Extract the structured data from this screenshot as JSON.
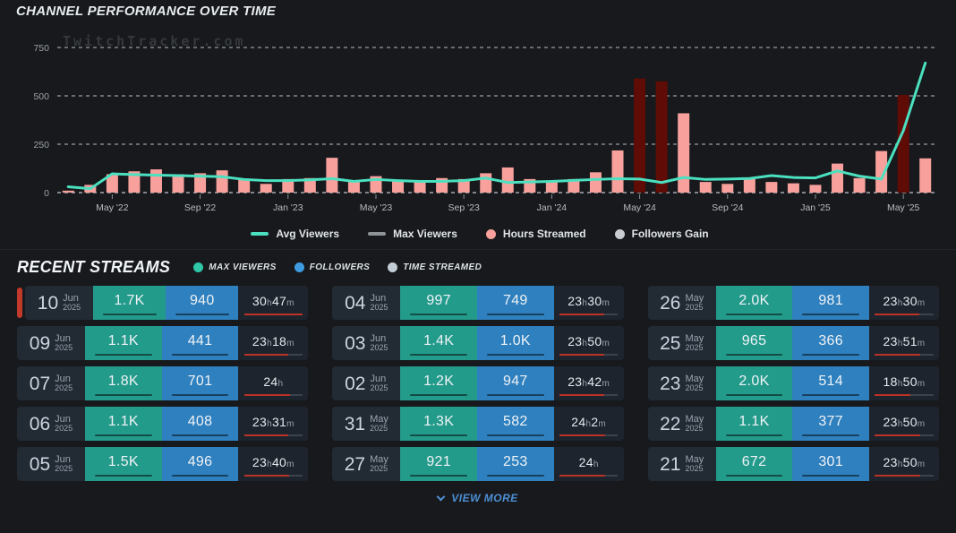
{
  "colors": {
    "background": "#17191c",
    "avg_viewers_line": "#4be0bf",
    "max_viewers_gray": "#8e9398",
    "hours_bar": "#f7a09c",
    "hours_bar_highlight": "#5f0c07",
    "followers_gain_gray": "#c9cdd1",
    "grid_line": "#83878c",
    "axis_label": "#9ba2a9",
    "tick_label": "#b6bcc3",
    "card_background": "#222a34",
    "max_viewers_cell": "#239b8b",
    "followers_cell": "#2f80bf",
    "time_cell": "#1d242d",
    "time_underline_red": "#bb3226",
    "live_indicator": "#c0392b",
    "view_more_blue": "#4e8fd5"
  },
  "chart": {
    "title": "CHANNEL PERFORMANCE OVER TIME",
    "watermark": "TwitchTracker.com",
    "legend": [
      {
        "label": "Avg Viewers",
        "marker": "line",
        "color": "#4be0bf"
      },
      {
        "label": "Max Viewers",
        "marker": "line",
        "color": "#8e9398"
      },
      {
        "label": "Hours Streamed",
        "marker": "circle",
        "color": "#f7a09c"
      },
      {
        "label": "Followers Gain",
        "marker": "circle",
        "color": "#c9cdd1"
      }
    ]
  },
  "chart_data": {
    "type": "bar+line",
    "title": "CHANNEL PERFORMANCE OVER TIME",
    "ylim": [
      0,
      750
    ],
    "y_ticks": [
      0,
      250,
      500,
      750
    ],
    "grid": "dashed-horizontal",
    "legend_position": "bottom",
    "x": [
      "Mar '22",
      "Apr '22",
      "May '22",
      "Jun '22",
      "Jul '22",
      "Aug '22",
      "Sep '22",
      "Oct '22",
      "Nov '22",
      "Dec '22",
      "Jan '23",
      "Feb '23",
      "Mar '23",
      "Apr '23",
      "May '23",
      "Jun '23",
      "Jul '23",
      "Aug '23",
      "Sep '23",
      "Oct '23",
      "Nov '23",
      "Dec '23",
      "Jan '24",
      "Feb '24",
      "Mar '24",
      "Apr '24",
      "May '24",
      "Jun '24",
      "Jul '24",
      "Aug '24",
      "Sep '24",
      "Oct '24",
      "Nov '24",
      "Dec '24",
      "Jan '25",
      "Feb '25",
      "Mar '25",
      "Apr '25",
      "May '25",
      "Jun '25"
    ],
    "x_tick_indices": [
      2,
      6,
      10,
      14,
      18,
      22,
      26,
      30,
      34,
      38
    ],
    "x_tick_labels": [
      "May '22",
      "Sep '22",
      "Jan '23",
      "May '23",
      "Sep '23",
      "Jan '24",
      "May '24",
      "Sep '24",
      "Jan '25",
      "May '25"
    ],
    "series": [
      {
        "name": "Hours Streamed",
        "type": "bar",
        "values": [
          10,
          40,
          95,
          110,
          120,
          95,
          100,
          115,
          65,
          45,
          70,
          75,
          180,
          55,
          85,
          65,
          55,
          75,
          70,
          100,
          130,
          70,
          60,
          70,
          105,
          218,
          590,
          575,
          410,
          55,
          45,
          70,
          55,
          48,
          40,
          150,
          75,
          215,
          505,
          177
        ],
        "highlight_indices": [
          26,
          27,
          38
        ]
      },
      {
        "name": "Avg Viewers",
        "type": "line",
        "values": [
          30,
          20,
          97,
          93,
          90,
          88,
          85,
          82,
          68,
          62,
          62,
          66,
          72,
          58,
          68,
          62,
          58,
          58,
          62,
          75,
          52,
          55,
          58,
          63,
          68,
          72,
          70,
          52,
          78,
          68,
          70,
          73,
          88,
          78,
          76,
          112,
          85,
          70,
          320,
          670
        ]
      }
    ]
  },
  "recent": {
    "title": "RECENT STREAMS",
    "legend": [
      {
        "label": "MAX VIEWERS",
        "color": "#2fc7a7"
      },
      {
        "label": "FOLLOWERS",
        "color": "#3f9be0"
      },
      {
        "label": "TIME STREAMED",
        "color": "#c3cdd6"
      }
    ],
    "view_more": "VIEW MORE",
    "streams": [
      {
        "day": "10",
        "month": "Jun",
        "year": "2025",
        "max_viewers": "1.7K",
        "followers": "940",
        "time": "30h47m",
        "minutes": 1847,
        "live": true
      },
      {
        "day": "09",
        "month": "Jun",
        "year": "2025",
        "max_viewers": "1.1K",
        "followers": "441",
        "time": "23h18m",
        "minutes": 1398,
        "live": false
      },
      {
        "day": "07",
        "month": "Jun",
        "year": "2025",
        "max_viewers": "1.8K",
        "followers": "701",
        "time": "24h",
        "minutes": 1440,
        "live": false
      },
      {
        "day": "06",
        "month": "Jun",
        "year": "2025",
        "max_viewers": "1.1K",
        "followers": "408",
        "time": "23h31m",
        "minutes": 1411,
        "live": false
      },
      {
        "day": "05",
        "month": "Jun",
        "year": "2025",
        "max_viewers": "1.5K",
        "followers": "496",
        "time": "23h40m",
        "minutes": 1420,
        "live": false
      },
      {
        "day": "04",
        "month": "Jun",
        "year": "2025",
        "max_viewers": "997",
        "followers": "749",
        "time": "23h30m",
        "minutes": 1410,
        "live": false
      },
      {
        "day": "03",
        "month": "Jun",
        "year": "2025",
        "max_viewers": "1.4K",
        "followers": "1.0K",
        "time": "23h50m",
        "minutes": 1430,
        "live": false
      },
      {
        "day": "02",
        "month": "Jun",
        "year": "2025",
        "max_viewers": "1.2K",
        "followers": "947",
        "time": "23h42m",
        "minutes": 1422,
        "live": false
      },
      {
        "day": "31",
        "month": "May",
        "year": "2025",
        "max_viewers": "1.3K",
        "followers": "582",
        "time": "24h2m",
        "minutes": 1442,
        "live": false
      },
      {
        "day": "27",
        "month": "May",
        "year": "2025",
        "max_viewers": "921",
        "followers": "253",
        "time": "24h",
        "minutes": 1440,
        "live": false
      },
      {
        "day": "26",
        "month": "May",
        "year": "2025",
        "max_viewers": "2.0K",
        "followers": "981",
        "time": "23h30m",
        "minutes": 1410,
        "live": false
      },
      {
        "day": "25",
        "month": "May",
        "year": "2025",
        "max_viewers": "965",
        "followers": "366",
        "time": "23h51m",
        "minutes": 1431,
        "live": false
      },
      {
        "day": "23",
        "month": "May",
        "year": "2025",
        "max_viewers": "2.0K",
        "followers": "514",
        "time": "18h50m",
        "minutes": 1130,
        "live": false
      },
      {
        "day": "22",
        "month": "May",
        "year": "2025",
        "max_viewers": "1.1K",
        "followers": "377",
        "time": "23h50m",
        "minutes": 1430,
        "live": false
      },
      {
        "day": "21",
        "month": "May",
        "year": "2025",
        "max_viewers": "672",
        "followers": "301",
        "time": "23h50m",
        "minutes": 1430,
        "live": false
      }
    ]
  }
}
